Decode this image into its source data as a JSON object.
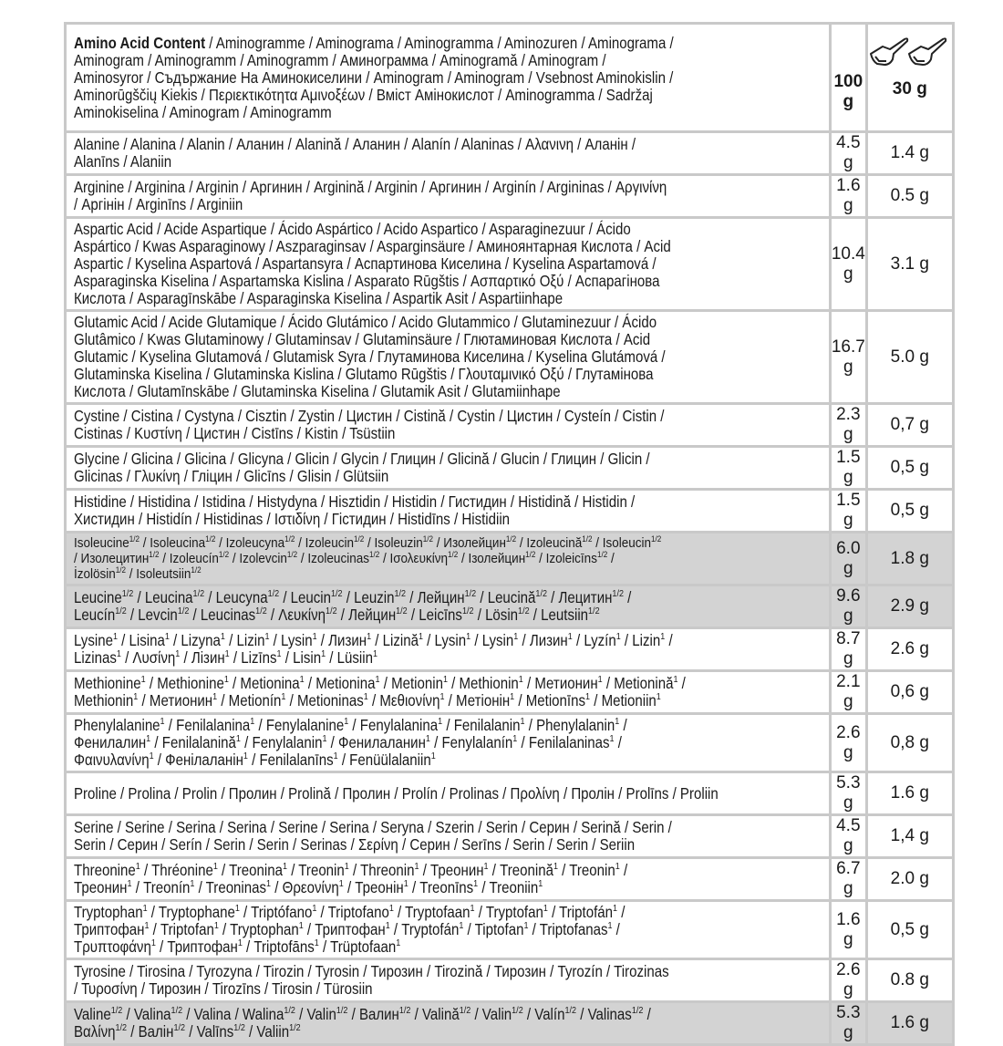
{
  "header": {
    "lines": [
      "**Amino Acid Content** / Aminogramme / Aminograma / Aminogramma / Aminozuren / Aminograma /",
      "Aminogram / Aminogramm / Aminogramm / Аминограмма / Aminogramă / Aminogram /",
      "Aminosyror / Съдържание На Аминокиселини / Aminogram / Aminogram / Vsebnost Aminokislin /",
      "Aminorūgščių Kiekis / Περιεκτικότητα Αμινοξέων / Вміст Амінокислот / Aminogramma / Sadržaj",
      "Aminokiselina / Aminogram / Aminogramm"
    ],
    "col_100": "100 g",
    "col_30": "30 g",
    "col_30_icon": "two-scoops-icon"
  },
  "colors": {
    "border": "#c9c9c9",
    "highlight_row": "#d3d3d3"
  },
  "rows": [
    {
      "lines": [
        "Alanine / Alanina / Alanin / Аланин / Alanină / Аланин / Alanín / Alaninas / Αλανινη / Аланін /",
        "Alanīns / Alaniin"
      ],
      "v100": "4.5 g",
      "v30": "1.4 g"
    },
    {
      "lines": [
        "Arginine / Arginina / Arginin / Аргинин / Arginină / Arginin / Аргинин / Arginín / Argininas / Αργινίνη",
        "/ Аргінін / Arginīns / Arginiin"
      ],
      "v100": "1.6 g",
      "v30": "0.5 g"
    },
    {
      "lines": [
        "Aspartic Acid / Acide Aspartique / Ácido Aspártico / Acido Aspartico / Asparaginezuur / Ácido",
        "Aspártico / Kwas Asparaginowy / Aszparaginsav / Asparginsäure / Аминоянтарная Кислота / Acid",
        "Aspartic / Kyselina Aspartová / Aspartansyra / Аспартинова Киселина / Kyselina Aspartamová /",
        "Asparaginska Kiselina / Aspartamska Kislina / Asparato Rūgštis / Ασπαρτικό Οξύ / Аспарагінова",
        "Кислота / Asparagīnskābe / Asparaginska Kiselina / Aspartik Asit / Aspartiinhape"
      ],
      "v100": "10.4 g",
      "v30": "3.1 g"
    },
    {
      "lines": [
        "Glutamic Acid / Acide Glutamique / Ácido Glutámico / Acido Glutammico / Glutaminezuur / Ácido",
        "Glutâmico / Kwas Glutaminowy / Glutaminsav / Glutaminsäure / Глютаминовая Кислота / Acid",
        "Glutamic / Kyselina Glutamová / Glutamisk Syra / Глутаминова Киселина / Kyselina Glutámová /",
        "Glutaminska Kiselina / Glutaminska Kislina / Glutamo Rūgštis / Γλουταμινικό Οξύ / Глутамінова",
        "Кислота / Glutamīnskābe / Glutaminska Kiselina / Glutamik Asit / Glutamiinhape"
      ],
      "v100": "16.7 g",
      "v30": "5.0 g"
    },
    {
      "lines": [
        "Cystine / Cistina / Cystyna / Cisztin / Zystin / Цистин / Cistină / Cystin / Цистин / Cysteín / Cistin /",
        "Cistinas / Κυστίνη / Цистин / Cistīns / Kistin / Tsüstiin"
      ],
      "v100": "2.3 g",
      "v30": "0,7 g"
    },
    {
      "lines": [
        "Glycine / Glicina / Glicina / Glicyna / Glicin / Glycin / Глицин / Glicină / Glucin / Глицин / Glicin /",
        "Glicinas / Γλυκίνη / Гліцин / Glicīns / Glisin / Glütsiin"
      ],
      "v100": "1.5 g",
      "v30": "0,5 g"
    },
    {
      "lines": [
        "Histidine / Histidina / Istidina / Histydyna / Hisztidin / Histidin / Гистидин / Histidină / Histidin /",
        "Хистидин / Histidín / Histidinas / Ιστιδίνη / Гістидин / Histidīns / Histidiin"
      ],
      "v100": "1.5 g",
      "v30": "0,5 g"
    },
    {
      "highlight": true,
      "small": true,
      "lines": [
        "Isoleucine{1/2} / Isoleucina{1/2} / Izoleucyna{1/2} / Izoleucin{1/2} / Isoleuzin{1/2} / Изолейцин{1/2} / Izoleucină{1/2} / Isoleucin{1/2}",
        "/ Изолецитин{1/2} / Izoleucín{1/2} / Izolevcin{1/2} / Izoleucinas{1/2} / Ισολευκίνη{1/2} / Ізолейцин{1/2} / Izoleicīns{1/2} /",
        "İzolösin{1/2} / Isoleutsiin{1/2}"
      ],
      "v100": "6.0 g",
      "v30": "1.8 g"
    },
    {
      "highlight": true,
      "lines": [
        "Leucine{1/2} / Leucina{1/2} / Leucyna{1/2} / Leucin{1/2} / Leuzin{1/2} / Лейцин{1/2} / Leucină{1/2} / Лецитин{1/2} /",
        "Leucín{1/2} / Levcin{1/2} / Leucinas{1/2} / Λευκίνη{1/2} / Лейцин{1/2} / Leicīns{1/2} / Lösin{1/2} / Leutsiin{1/2}"
      ],
      "v100": "9.6 g",
      "v30": "2.9 g"
    },
    {
      "lines": [
        "Lysine{1} / Lisina{1} / Lizyna{1} / Lizin{1} / Lysin{1} / Лизин{1} / Lizină{1} / Lysin{1} / Lysin{1} / Лизин{1} / Lyzín{1} / Lizin{1} /",
        "Lizinas{1} / Λυσίνη{1} / Лізин{1} / Lizīns{1} / Lisin{1} / Lüsiin{1}"
      ],
      "v100": "8.7 g",
      "v30": "2.6 g"
    },
    {
      "lines": [
        "Methionine{1} / Methionine{1} / Metionina{1} / Metionina{1} / Metionin{1} / Methionin{1} / Метионин{1} / Metionină{1} /",
        "Methionin{1} / Метионин{1} / Metionín{1} / Metioninas{1} / Μεθιονίνη{1} / Метіонін{1} / Metionīns{1} / Metioniin{1}"
      ],
      "v100": "2.1 g",
      "v30": "0,6 g"
    },
    {
      "lines": [
        "Phenylalanine{1} / Fenilalanina{1} / Fenylalanine{1} / Fenylalanina{1} / Fenilalanin{1} / Phenylalanin{1} /",
        "Фенилалин{1} / Fenilalanină{1} / Fenylalanin{1} / Фенилаланин{1} / Fenylalanín{1} / Fenilalaninas{1} /",
        "Φαινυλανίνη{1} / Фенілаланін{1} / Fenilalanīns{1} / Fenüülalaniin{1}"
      ],
      "v100": "2.6 g",
      "v30": "0,8 g"
    },
    {
      "lines": [
        "Proline / Prolina / Prolin / Пролин / Prolină / Пролин / Prolín / Prolinas / Προλίνη / Пролін / Prolīns / Proliin"
      ],
      "v100": "5.3 g",
      "v30": "1.6 g"
    },
    {
      "lines": [
        "Serine / Serine / Serina / Serina / Serine / Serina / Seryna / Szerin / Serin / Серин / Serină / Serin /",
        "Serin / Серин / Serín / Serin / Serin / Serinas / Σερίνη / Серин / Serīns / Serin / Serin / Seriin"
      ],
      "v100": "4.5 g",
      "v30": "1,4 g"
    },
    {
      "lines": [
        "Threonine{1} / Thréonine{1} / Treonina{1} / Treonin{1} / Threonin{1} / Треонин{1} / Treonină{1} / Treonin{1} /",
        "Треонин{1} / Treonín{1} / Treoninas{1} / Θρεονίνη{1} / Треонін{1} / Treonīns{1} / Treoniin{1}"
      ],
      "v100": "6.7 g",
      "v30": "2.0 g"
    },
    {
      "lines": [
        "Tryptophan{1} / Tryptophane{1} / Triptófano{1} / Triptofano{1} / Tryptofaan{1} / Tryptofan{1} / Triptofán{1} /",
        "Триптофан{1} / Triptofan{1} / Tryptophan{1} / Триптофан{1} / Tryptofán{1} / Tiptofan{1} / Triptofanas{1} /",
        "Τρυπτοφάνη{1} / Триптофан{1} / Triptofāns{1} / Trüptofaan{1}"
      ],
      "v100": "1.6 g",
      "v30": "0,5 g"
    },
    {
      "lines": [
        "Tyrosine / Tirosina / Tyrozyna / Tirozin / Tyrosin / Тирозин / Tirozină / Тирозин / Tyrozín / Tirozinas",
        "/ Τυροσίνη / Тирозин / Tirozīns / Tirosin / Türosiin"
      ],
      "v100": "2.6 g",
      "v30": "0.8 g"
    },
    {
      "highlight": true,
      "lines": [
        "Valine{1/2} / Valina{1/2}  / Valina / Walina{1/2} / Valin{1/2} / Валин{1/2} / Valină{1/2} / Valin{1/2} / Valín{1/2} / Valinas{1/2} /",
        "Βαλίνη{1/2} / Валін{1/2} / Valīns{1/2} / Valiin{1/2}"
      ],
      "v100": "5.3 g",
      "v30": "1.6 g"
    }
  ]
}
